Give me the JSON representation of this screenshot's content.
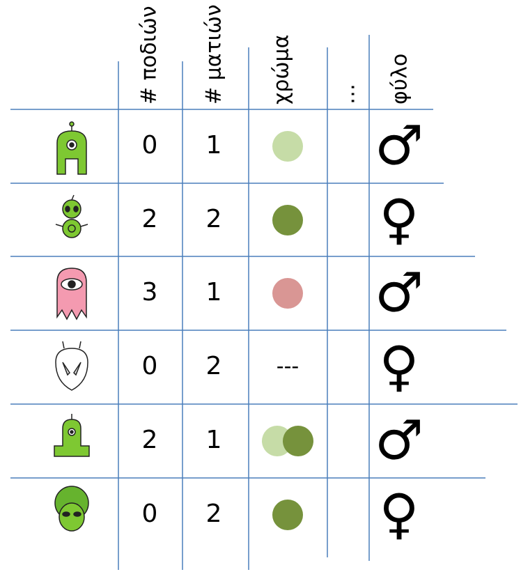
{
  "header": {
    "columns": [
      "# ποδιών",
      "# ματιών",
      "χρώμα",
      "…",
      "φύλο"
    ]
  },
  "table": {
    "rows": [
      {
        "legs": 0,
        "eyes": 1,
        "color": {
          "fills": [
            "#c6dca7"
          ]
        },
        "sex": "♂"
      },
      {
        "legs": 2,
        "eyes": 2,
        "color": {
          "fills": [
            "#76923c"
          ]
        },
        "sex": "♀"
      },
      {
        "legs": 3,
        "eyes": 1,
        "color": {
          "fills": [
            "#d99694"
          ]
        },
        "sex": "♂"
      },
      {
        "legs": 0,
        "eyes": 2,
        "color": {
          "text": "---"
        },
        "sex": "♀"
      },
      {
        "legs": 2,
        "eyes": 1,
        "color": {
          "fills": [
            "#c6dca7",
            "#76923c"
          ]
        },
        "sex": "♂"
      },
      {
        "legs": 0,
        "eyes": 2,
        "color": {
          "fills": [
            "#76923c"
          ]
        },
        "sex": "♀"
      }
    ]
  }
}
